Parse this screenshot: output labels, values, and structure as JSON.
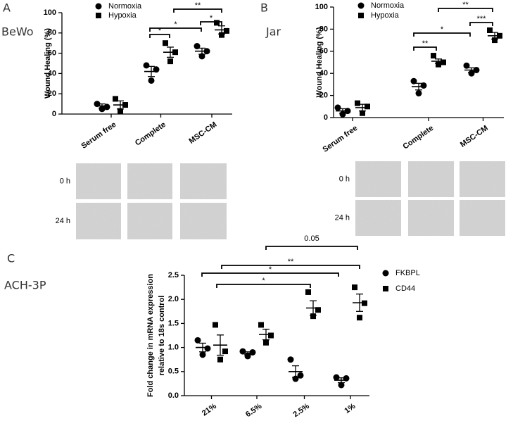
{
  "chart_data": [
    {
      "type": "scatter",
      "panel": "A",
      "cell_line": "BeWo",
      "ylabel": "Wound Healing (%)",
      "categories": [
        "Serum free",
        "Complete",
        "MSC-CM"
      ],
      "series": [
        {
          "name": "Normoxia",
          "marker": "circle",
          "color": "#000000",
          "values": [
            8,
            42,
            62
          ],
          "errors": [
            2,
            5,
            3
          ],
          "points": [
            [
              10,
              5,
              7
            ],
            [
              48,
              33,
              44
            ],
            [
              67,
              57,
              62
            ]
          ]
        },
        {
          "name": "Hypoxia",
          "marker": "square",
          "color": "#000000",
          "values": [
            9,
            61,
            83
          ],
          "errors": [
            4,
            5,
            4
          ],
          "points": [
            [
              15,
              3,
              9
            ],
            [
              70,
              52,
              61
            ],
            [
              90,
              78,
              82
            ]
          ]
        }
      ],
      "ylim": [
        0,
        100
      ],
      "yticks": [
        0,
        20,
        40,
        60,
        80,
        100
      ],
      "annotations": [
        "*",
        "*",
        "**",
        "*"
      ],
      "image_rows": [
        "0 h",
        "24 h"
      ]
    },
    {
      "type": "scatter",
      "panel": "B",
      "cell_line": "Jar",
      "ylabel": "Wound Healing (%)",
      "categories": [
        "Serum free",
        "Complete",
        "MSC-CM"
      ],
      "series": [
        {
          "name": "Normoxia",
          "marker": "circle",
          "color": "#000000",
          "values": [
            6,
            28,
            43
          ],
          "errors": [
            2,
            3,
            2
          ],
          "points": [
            [
              9,
              3,
              6
            ],
            [
              33,
              22,
              29
            ],
            [
              47,
              40,
              43
            ]
          ]
        },
        {
          "name": "Hypoxia",
          "marker": "square",
          "color": "#000000",
          "values": [
            9,
            51,
            74
          ],
          "errors": [
            3,
            2,
            3
          ],
          "points": [
            [
              13,
              4,
              10
            ],
            [
              56,
              48,
              50
            ],
            [
              79,
              70,
              74
            ]
          ]
        }
      ],
      "ylim": [
        0,
        100
      ],
      "yticks": [
        0,
        20,
        40,
        60,
        80,
        100
      ],
      "annotations": [
        "**",
        "***",
        "*",
        "**"
      ],
      "image_rows": [
        "0 h",
        "24 h"
      ]
    },
    {
      "type": "scatter",
      "panel": "C",
      "cell_line": "ACH-3P",
      "ylabel": [
        "Fold change in mRNA expression",
        "relative to 18s control"
      ],
      "categories": [
        "21%",
        "6.5%",
        "2.5%",
        "1%"
      ],
      "series": [
        {
          "name": "FKBPL",
          "marker": "circle",
          "color": "#000000",
          "values": [
            1.0,
            0.88,
            0.5,
            0.32
          ],
          "errors": [
            0.09,
            0.03,
            0.12,
            0.05
          ],
          "points": [
            [
              1.15,
              0.85,
              0.98
            ],
            [
              0.92,
              0.82,
              0.9
            ],
            [
              0.75,
              0.35,
              0.42
            ],
            [
              0.38,
              0.22,
              0.36
            ]
          ]
        },
        {
          "name": "CD44",
          "marker": "square",
          "color": "#000000",
          "values": [
            1.05,
            1.27,
            1.82,
            1.93
          ],
          "errors": [
            0.21,
            0.11,
            0.15,
            0.18
          ],
          "points": [
            [
              1.47,
              0.75,
              0.92
            ],
            [
              1.47,
              1.1,
              1.25
            ],
            [
              2.15,
              1.65,
              1.78
            ],
            [
              2.25,
              1.62,
              1.92
            ]
          ]
        }
      ],
      "ylim": [
        0,
        2.5
      ],
      "yticks": [
        {
          "value": 0,
          "label": "0.0"
        },
        {
          "value": 0.5,
          "label": "0.5"
        },
        {
          "value": 1,
          "label": "1.0"
        },
        {
          "value": 1.5,
          "label": "1.5"
        },
        {
          "value": 2,
          "label": "2.0"
        },
        {
          "value": 2.5,
          "label": "2.5"
        }
      ],
      "annotations": [
        "0.05",
        "**",
        "*",
        "*"
      ]
    }
  ]
}
